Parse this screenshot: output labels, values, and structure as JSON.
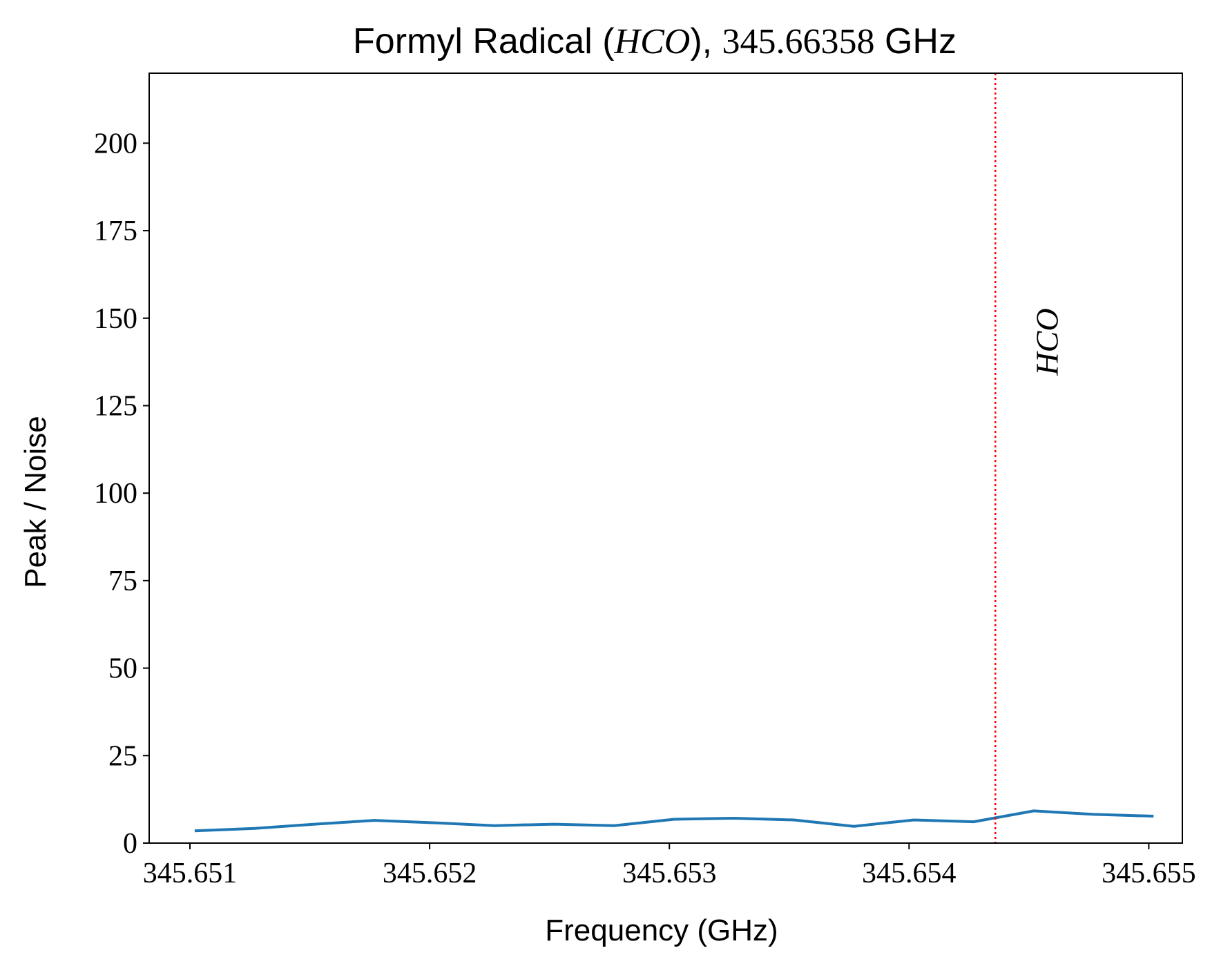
{
  "chart_data": {
    "type": "line",
    "title": {
      "prefix": "Formyl Radical (",
      "molecule": "HCO",
      "middle": "), ",
      "frequency": "345.66358",
      "suffix": " GHz"
    },
    "xlabel": "Frequency (GHz)",
    "ylabel": "Peak / Noise",
    "xlim": [
      345.65083,
      345.65514
    ],
    "ylim": [
      0,
      220
    ],
    "xticks": [
      345.651,
      345.652,
      345.653,
      345.654,
      345.655
    ],
    "xtick_labels": [
      "345.651",
      "345.652",
      "345.653",
      "345.654",
      "345.655"
    ],
    "yticks": [
      0,
      25,
      50,
      75,
      100,
      125,
      150,
      175,
      200
    ],
    "ytick_labels": [
      "0",
      "25",
      "50",
      "75",
      "100",
      "125",
      "150",
      "175",
      "200"
    ],
    "grid": false,
    "series": [
      {
        "color": "#1f77b4",
        "x": [
          345.65102,
          345.65127,
          345.65152,
          345.65177,
          345.65202,
          345.65227,
          345.65252,
          345.65277,
          345.65302,
          345.65327,
          345.65352,
          345.65377,
          345.65402,
          345.65427,
          345.65452,
          345.65477,
          345.65502
        ],
        "values": [
          3.5,
          4.2,
          5.4,
          6.5,
          5.8,
          5.0,
          5.4,
          5.0,
          6.8,
          7.1,
          6.6,
          4.8,
          6.6,
          6.1,
          9.2,
          8.2,
          7.7
        ]
      }
    ],
    "marker_line": {
      "x": 345.65436,
      "color": "#ff0000",
      "style": "dotted",
      "label": "HCO"
    }
  }
}
